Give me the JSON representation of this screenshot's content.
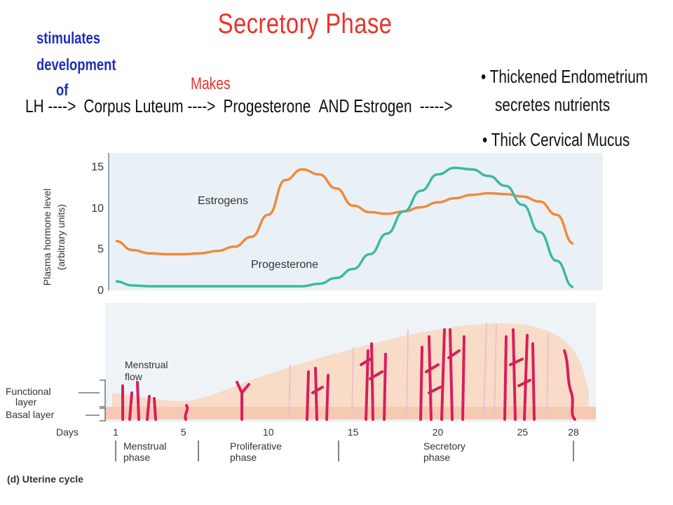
{
  "slide": {
    "title": "Secretory Phase",
    "stimulates_lines": [
      "stimulates",
      "development",
      "of"
    ],
    "makes_label": "Makes",
    "flow": {
      "lh": "LH ---->",
      "corpus_luteum": "Corpus Luteum ---->",
      "progesterone": "Progesterone",
      "and_estrogen": "AND Estrogen",
      "arrow": "----->"
    },
    "bullets": [
      "• Thickened Endometrium",
      "secretes nutrients",
      "• Thick Cervical Mucus"
    ]
  },
  "chart_data": {
    "type": "line",
    "ylabel_lines": [
      "Plasma hormone level",
      "(arbitrary units)"
    ],
    "y_ticks": [
      "15",
      "10",
      "5",
      "0"
    ],
    "ylim": [
      0,
      15
    ],
    "xlim": [
      1,
      28
    ],
    "series": [
      {
        "name": "Estrogens",
        "color": "#f08a3c",
        "x": [
          1,
          2,
          3,
          4,
          5,
          6,
          7,
          8,
          9,
          10,
          11,
          12,
          13,
          14,
          15,
          16,
          17,
          18,
          19,
          20,
          21,
          22,
          23,
          24,
          25,
          26,
          27,
          28
        ],
        "values": [
          6.0,
          4.9,
          4.5,
          4.4,
          4.4,
          4.5,
          4.8,
          5.3,
          6.5,
          9.2,
          13.4,
          14.7,
          14.1,
          12.4,
          10.3,
          9.5,
          9.3,
          9.6,
          10.1,
          10.7,
          11.2,
          11.6,
          11.8,
          11.7,
          11.4,
          10.8,
          9.2,
          5.7
        ]
      },
      {
        "name": "Progesterone",
        "color": "#3fb8a2",
        "x": [
          1,
          2,
          3,
          4,
          5,
          6,
          7,
          8,
          9,
          10,
          11,
          12,
          13,
          14,
          15,
          16,
          17,
          18,
          19,
          20,
          21,
          22,
          23,
          24,
          25,
          26,
          27,
          28
        ],
        "values": [
          1.1,
          0.6,
          0.5,
          0.5,
          0.5,
          0.5,
          0.5,
          0.5,
          0.5,
          0.5,
          0.5,
          0.5,
          0.8,
          1.5,
          2.6,
          4.4,
          6.9,
          9.6,
          12.1,
          14.1,
          14.9,
          14.7,
          13.9,
          12.7,
          10.4,
          7.1,
          3.6,
          0.4
        ]
      }
    ],
    "series_labels": {
      "estrogens": "Estrogens",
      "progesterone": "Progesterone"
    }
  },
  "uterine": {
    "menstrual_flow_lines": [
      "Menstrual",
      "flow"
    ],
    "functional_layer_lines": [
      "Functional",
      "layer"
    ],
    "basal_layer": "Basal layer",
    "days_label": "Days",
    "day_ticks": [
      "1",
      "5",
      "10",
      "15",
      "20",
      "25",
      "28"
    ],
    "phases": [
      {
        "lines": [
          "Menstrual",
          "phase"
        ]
      },
      {
        "lines": [
          "Proliferative",
          "phase"
        ]
      },
      {
        "lines": [
          "Secretory",
          "phase"
        ]
      }
    ],
    "caption": "(d) Uterine cycle"
  }
}
